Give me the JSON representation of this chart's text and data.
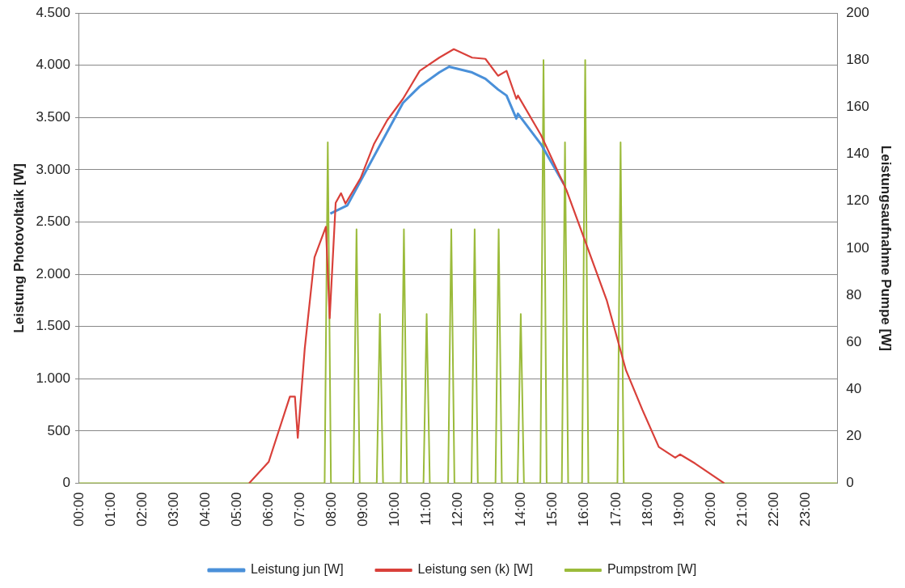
{
  "chart_data": {
    "type": "line",
    "ylabel": "Leistung Photovoltaik [W]",
    "y2label": "Leistungsaufnahme Pumpe [W]",
    "xlim": [
      0,
      24
    ],
    "xticks": [
      {
        "value": 0,
        "label": "00:00"
      },
      {
        "value": 1,
        "label": "01:00"
      },
      {
        "value": 2,
        "label": "02:00"
      },
      {
        "value": 3,
        "label": "03:00"
      },
      {
        "value": 4,
        "label": "04:00"
      },
      {
        "value": 5,
        "label": "05:00"
      },
      {
        "value": 6,
        "label": "06:00"
      },
      {
        "value": 7,
        "label": "07:00"
      },
      {
        "value": 8,
        "label": "08:00"
      },
      {
        "value": 9,
        "label": "09:00"
      },
      {
        "value": 10,
        "label": "10:00"
      },
      {
        "value": 11,
        "label": "11:00"
      },
      {
        "value": 12,
        "label": "12:00"
      },
      {
        "value": 13,
        "label": "13:00"
      },
      {
        "value": 14,
        "label": "14:00"
      },
      {
        "value": 15,
        "label": "15:00"
      },
      {
        "value": 16,
        "label": "16:00"
      },
      {
        "value": 17,
        "label": "17:00"
      },
      {
        "value": 18,
        "label": "18:00"
      },
      {
        "value": 19,
        "label": "19:00"
      },
      {
        "value": 20,
        "label": "20:00"
      },
      {
        "value": 21,
        "label": "21:00"
      },
      {
        "value": 22,
        "label": "22:00"
      },
      {
        "value": 23,
        "label": "23:00"
      }
    ],
    "ylim": [
      0,
      4500
    ],
    "yticks": [
      0,
      500,
      {
        "value": 1000,
        "label": "1.000"
      },
      {
        "value": 1500,
        "label": "1.500"
      },
      {
        "value": 2000,
        "label": "2.000"
      },
      {
        "value": 2500,
        "label": "2.500"
      },
      {
        "value": 3000,
        "label": "3.000"
      },
      {
        "value": 3500,
        "label": "3.500"
      },
      {
        "value": 4000,
        "label": "4.000"
      },
      {
        "value": 4500,
        "label": "4.500"
      }
    ],
    "y2lim": [
      0,
      200
    ],
    "y2ticks": [
      0,
      20,
      40,
      60,
      80,
      100,
      120,
      140,
      160,
      180,
      200
    ],
    "grid": "y",
    "legend": "bottom",
    "marker": "none",
    "line_style": "solid",
    "series": [
      {
        "name": "Leistung jun [W]",
        "color": "#4a90d9",
        "x": [
          7.95,
          8.49,
          10.25,
          10.78,
          11.4,
          11.71,
          12.44,
          12.86,
          13.26,
          13.53,
          13.84,
          13.89,
          14.62,
          15.34
        ],
        "values": [
          2580,
          2660,
          3640,
          3798,
          3932,
          3987,
          3932,
          3872,
          3769,
          3711,
          3490,
          3537,
          3245,
          2866
        ]
      },
      {
        "name": "Leistung sen (k) [W]",
        "color": "#d9403a",
        "x": [
          5.38,
          6.0,
          6.67,
          6.83,
          6.92,
          7.14,
          7.45,
          7.81,
          7.93,
          8.12,
          8.29,
          8.43,
          8.91,
          9.33,
          9.75,
          10.25,
          10.78,
          11.4,
          11.86,
          12.44,
          12.86,
          13.26,
          13.53,
          13.84,
          13.89,
          14.62,
          15.43,
          16.06,
          16.7,
          17.31,
          17.83,
          18.35,
          18.87,
          19.02,
          19.5,
          20.42
        ],
        "values": [
          0,
          205,
          829,
          829,
          434,
          1287,
          2163,
          2455,
          1579,
          2684,
          2776,
          2676,
          2921,
          3245,
          3474,
          3679,
          3947,
          4074,
          4155,
          4074,
          4062,
          3900,
          3947,
          3679,
          3711,
          3332,
          2803,
          2282,
          1753,
          1082,
          703,
          347,
          245,
          276,
          189,
          0
        ]
      },
      {
        "name": "Pumpstrom [W]",
        "color": "#9bbb3b",
        "axis": "y2",
        "x": [
          0,
          7.77,
          7.87,
          7.97,
          8.68,
          8.78,
          8.88,
          9.42,
          9.52,
          9.62,
          10.18,
          10.28,
          10.38,
          10.9,
          11.0,
          11.1,
          11.68,
          11.78,
          11.88,
          12.42,
          12.52,
          12.62,
          13.18,
          13.28,
          13.38,
          13.88,
          13.98,
          14.08,
          14.6,
          14.7,
          14.8,
          15.28,
          15.38,
          15.48,
          15.92,
          16.02,
          16.12,
          17.04,
          17.14,
          17.24,
          24
        ],
        "values": [
          0,
          0,
          145,
          0,
          0,
          108,
          0,
          0,
          72,
          0,
          0,
          108,
          0,
          0,
          72,
          0,
          0,
          108,
          0,
          0,
          108,
          0,
          0,
          108,
          0,
          0,
          72,
          0,
          0,
          180,
          0,
          0,
          145,
          0,
          0,
          180,
          0,
          0,
          145,
          0,
          0
        ]
      }
    ]
  }
}
